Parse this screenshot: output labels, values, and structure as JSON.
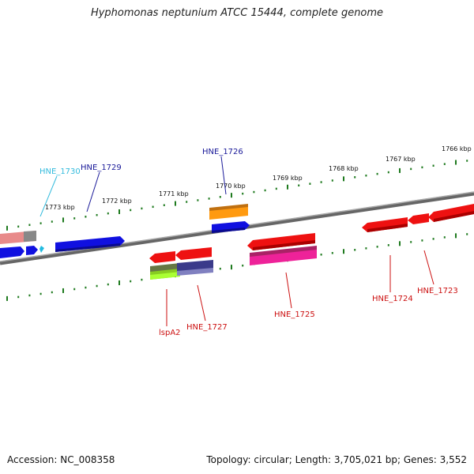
{
  "title": "Hyphomonas neptunium ATCC 15444, complete genome",
  "footer": {
    "accession": "Accession: NC_008358",
    "summary": "Topology: circular; Length: 3,705,021 bp; Genes: 3,552"
  },
  "colors": {
    "backbone": "#777777",
    "ticks": "#1e7a1e",
    "label_red": "#cc1111",
    "label_navy": "#1a1a99",
    "label_cyan": "#33bbdd"
  },
  "scale_labels": [
    "1773 kbp",
    "1772 kbp",
    "1771 kbp",
    "1770 kbp",
    "1769 kbp",
    "1768 kbp",
    "1767 kbp",
    "1766 kbp"
  ],
  "gene_labels": [
    "HNE_1730",
    "HNE_1729",
    "HNE_1726",
    "lspA2",
    "HNE_1727",
    "HNE_1725",
    "HNE_1724",
    "HNE_1723"
  ]
}
